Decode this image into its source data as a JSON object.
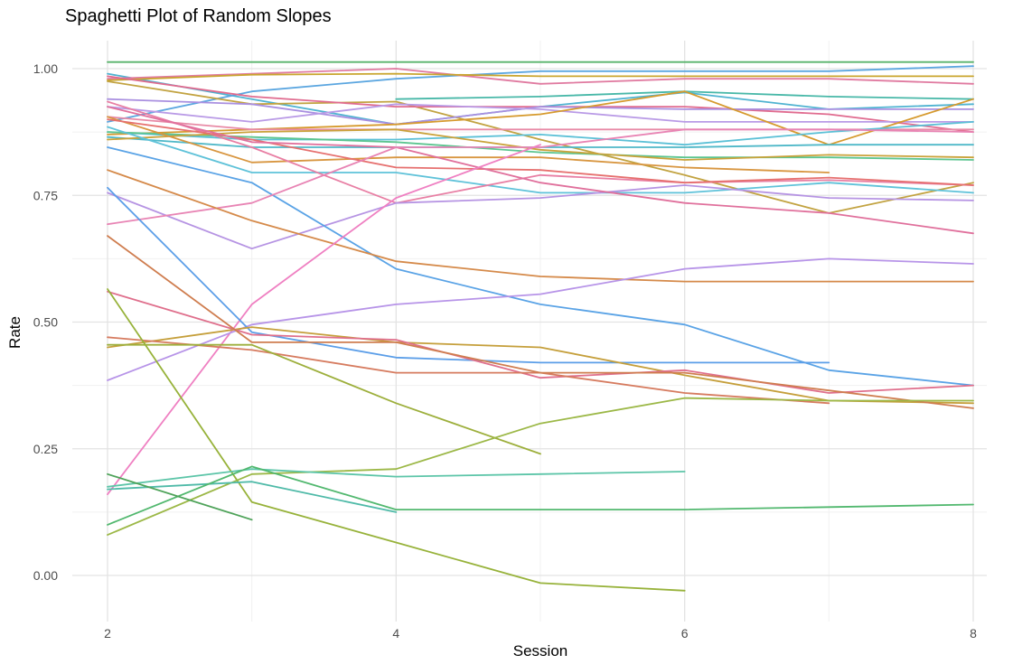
{
  "chart_data": {
    "type": "line",
    "title": "Spaghetti Plot of Random Slopes",
    "xlabel": "Session",
    "ylabel": "Rate",
    "xlim": [
      2,
      8
    ],
    "ylim": [
      -0.07,
      1.05
    ],
    "x_ticks": [
      2,
      4,
      6,
      8
    ],
    "y_ticks": [
      0.0,
      0.25,
      0.5,
      0.75,
      1.0
    ],
    "x_tick_labels": [
      "2",
      "4",
      "6",
      "8"
    ],
    "y_tick_labels": [
      "0.00",
      "0.25",
      "0.50",
      "0.75",
      "1.00"
    ],
    "grid": true,
    "legend": "none",
    "series": [
      {
        "color": "#59b36b",
        "points": [
          [
            2,
            1.013
          ],
          [
            4,
            1.013
          ],
          [
            6,
            1.013
          ],
          [
            8,
            1.013
          ]
        ]
      },
      {
        "color": "#4fb3d1",
        "points": [
          [
            2,
            0.99
          ],
          [
            3,
            0.94
          ],
          [
            4,
            0.89
          ],
          [
            5,
            0.925
          ],
          [
            6,
            0.953
          ],
          [
            7,
            0.92
          ],
          [
            8,
            0.93
          ]
        ]
      },
      {
        "color": "#5ba6e0",
        "points": [
          [
            2,
            0.895
          ],
          [
            3,
            0.955
          ],
          [
            4,
            0.98
          ],
          [
            5,
            0.995
          ],
          [
            6,
            0.995
          ],
          [
            7,
            0.995
          ],
          [
            8,
            1.005
          ]
        ]
      },
      {
        "color": "#e07aa0",
        "points": [
          [
            2,
            0.98
          ],
          [
            3,
            0.99
          ],
          [
            4,
            1.0
          ],
          [
            5,
            0.97
          ],
          [
            6,
            0.98
          ],
          [
            7,
            0.98
          ],
          [
            8,
            0.97
          ]
        ]
      },
      {
        "color": "#c9a52e",
        "points": [
          [
            2,
            0.977
          ],
          [
            3,
            0.988
          ],
          [
            4,
            0.99
          ],
          [
            5,
            0.985
          ],
          [
            6,
            0.985
          ],
          [
            7,
            0.985
          ],
          [
            8,
            0.985
          ]
        ]
      },
      {
        "color": "#c2a341",
        "points": [
          [
            2,
            0.975
          ],
          [
            3,
            0.93
          ],
          [
            4,
            0.935
          ],
          [
            5,
            0.86
          ],
          [
            6,
            0.79
          ],
          [
            7,
            0.715
          ],
          [
            8,
            0.775
          ]
        ]
      },
      {
        "color": "#e06b8f",
        "points": [
          [
            2,
            0.985
          ],
          [
            3,
            0.945
          ],
          [
            4,
            0.925
          ],
          [
            5,
            0.925
          ],
          [
            6,
            0.925
          ],
          [
            7,
            0.91
          ],
          [
            8,
            0.875
          ]
        ]
      },
      {
        "color": "#a98fe0",
        "points": [
          [
            2,
            0.94
          ],
          [
            3,
            0.93
          ],
          [
            4,
            0.89
          ],
          [
            5,
            0.925
          ],
          [
            6,
            0.92
          ],
          [
            7,
            0.92
          ],
          [
            8,
            0.92
          ]
        ]
      },
      {
        "color": "#48b8a8",
        "points": [
          [
            4,
            0.94
          ],
          [
            5,
            0.945
          ],
          [
            6,
            0.955
          ],
          [
            7,
            0.945
          ],
          [
            8,
            0.94
          ]
        ]
      },
      {
        "color": "#b99ae6",
        "points": [
          [
            2,
            0.925
          ],
          [
            3,
            0.895
          ],
          [
            4,
            0.93
          ],
          [
            5,
            0.92
          ],
          [
            6,
            0.895
          ],
          [
            7,
            0.895
          ],
          [
            8,
            0.895
          ]
        ]
      },
      {
        "color": "#d69a2e",
        "points": [
          [
            2,
            0.87
          ],
          [
            3,
            0.88
          ],
          [
            4,
            0.89
          ],
          [
            5,
            0.91
          ],
          [
            6,
            0.955
          ],
          [
            7,
            0.85
          ],
          [
            8,
            0.94
          ]
        ]
      },
      {
        "color": "#e88aa6",
        "points": [
          [
            2,
            0.905
          ],
          [
            3,
            0.88
          ],
          [
            4,
            0.88
          ],
          [
            5,
            0.88
          ],
          [
            6,
            0.88
          ],
          [
            7,
            0.88
          ],
          [
            8,
            0.88
          ]
        ]
      },
      {
        "color": "#5bc0d6",
        "points": [
          [
            2,
            0.875
          ],
          [
            3,
            0.86
          ],
          [
            4,
            0.86
          ],
          [
            5,
            0.87
          ],
          [
            6,
            0.85
          ],
          [
            7,
            0.875
          ],
          [
            8,
            0.895
          ]
        ]
      },
      {
        "color": "#4fb8c8",
        "points": [
          [
            2,
            0.865
          ],
          [
            3,
            0.845
          ],
          [
            4,
            0.845
          ],
          [
            5,
            0.845
          ],
          [
            6,
            0.845
          ],
          [
            7,
            0.85
          ],
          [
            8,
            0.85
          ]
        ]
      },
      {
        "color": "#5cc590",
        "points": [
          [
            2,
            0.875
          ],
          [
            3,
            0.865
          ],
          [
            4,
            0.855
          ],
          [
            5,
            0.835
          ],
          [
            6,
            0.825
          ],
          [
            7,
            0.825
          ],
          [
            8,
            0.82
          ]
        ]
      },
      {
        "color": "#caa23a",
        "points": [
          [
            2,
            0.86
          ],
          [
            3,
            0.875
          ],
          [
            4,
            0.88
          ],
          [
            5,
            0.84
          ],
          [
            6,
            0.82
          ],
          [
            7,
            0.83
          ],
          [
            8,
            0.825
          ]
        ]
      },
      {
        "color": "#d89640",
        "points": [
          [
            2,
            0.905
          ],
          [
            3,
            0.815
          ],
          [
            4,
            0.825
          ],
          [
            5,
            0.825
          ],
          [
            6,
            0.805
          ],
          [
            7,
            0.795
          ]
        ]
      },
      {
        "color": "#5fc2d9",
        "points": [
          [
            2,
            0.885
          ],
          [
            3,
            0.795
          ],
          [
            4,
            0.795
          ],
          [
            5,
            0.755
          ],
          [
            6,
            0.755
          ],
          [
            7,
            0.775
          ],
          [
            8,
            0.755
          ]
        ]
      },
      {
        "color": "#e87fa4",
        "points": [
          [
            2,
            0.935
          ],
          [
            3,
            0.845
          ],
          [
            4,
            0.735
          ],
          [
            5,
            0.79
          ],
          [
            6,
            0.775
          ],
          [
            7,
            0.78
          ],
          [
            8,
            0.77
          ]
        ]
      },
      {
        "color": "#e6706f",
        "points": [
          [
            2,
            0.9
          ],
          [
            3,
            0.86
          ],
          [
            4,
            0.805
          ],
          [
            5,
            0.8
          ],
          [
            6,
            0.775
          ],
          [
            7,
            0.785
          ],
          [
            8,
            0.77
          ]
        ]
      },
      {
        "color": "#b694e3",
        "points": [
          [
            2,
            0.755
          ],
          [
            3,
            0.645
          ],
          [
            4,
            0.735
          ],
          [
            5,
            0.745
          ],
          [
            6,
            0.77
          ],
          [
            7,
            0.745
          ],
          [
            8,
            0.74
          ]
        ]
      },
      {
        "color": "#e0709c",
        "points": [
          [
            2,
            0.925
          ],
          [
            3,
            0.855
          ],
          [
            4,
            0.845
          ],
          [
            5,
            0.775
          ],
          [
            6,
            0.735
          ],
          [
            7,
            0.715
          ],
          [
            8,
            0.675
          ]
        ]
      },
      {
        "color": "#5aa3e6",
        "points": [
          [
            2,
            0.845
          ],
          [
            3,
            0.775
          ],
          [
            4,
            0.605
          ],
          [
            5,
            0.535
          ],
          [
            6,
            0.495
          ],
          [
            7,
            0.405
          ],
          [
            8,
            0.375
          ]
        ]
      },
      {
        "color": "#e884b4",
        "points": [
          [
            2,
            0.693
          ],
          [
            3,
            0.735
          ],
          [
            4,
            0.845
          ],
          [
            5,
            0.845
          ],
          [
            6,
            0.88
          ],
          [
            7,
            0.88
          ],
          [
            8,
            0.875
          ]
        ]
      },
      {
        "color": "#d58a4a",
        "points": [
          [
            2,
            0.8
          ],
          [
            3,
            0.7
          ],
          [
            4,
            0.62
          ],
          [
            5,
            0.59
          ],
          [
            6,
            0.58
          ],
          [
            7,
            0.58
          ],
          [
            8,
            0.58
          ]
        ]
      },
      {
        "color": "#ef80c2",
        "points": [
          [
            2,
            0.16
          ],
          [
            3,
            0.535
          ],
          [
            4,
            0.745
          ],
          [
            5,
            0.85
          ]
        ]
      },
      {
        "color": "#b794e8",
        "points": [
          [
            2,
            0.385
          ],
          [
            3,
            0.495
          ],
          [
            4,
            0.535
          ],
          [
            5,
            0.555
          ],
          [
            6,
            0.605
          ],
          [
            7,
            0.625
          ],
          [
            8,
            0.615
          ]
        ]
      },
      {
        "color": "#5b9ee8",
        "points": [
          [
            2,
            0.765
          ],
          [
            3,
            0.48
          ],
          [
            4,
            0.43
          ],
          [
            5,
            0.42
          ],
          [
            6,
            0.42
          ],
          [
            7,
            0.42
          ]
        ]
      },
      {
        "color": "#c59f3b",
        "points": [
          [
            2,
            0.45
          ],
          [
            3,
            0.49
          ],
          [
            4,
            0.46
          ],
          [
            5,
            0.45
          ],
          [
            6,
            0.395
          ],
          [
            7,
            0.345
          ],
          [
            8,
            0.34
          ]
        ]
      },
      {
        "color": "#df6f8c",
        "points": [
          [
            2,
            0.56
          ],
          [
            3,
            0.475
          ],
          [
            4,
            0.465
          ],
          [
            5,
            0.39
          ],
          [
            6,
            0.405
          ],
          [
            7,
            0.36
          ],
          [
            8,
            0.375
          ]
        ]
      },
      {
        "color": "#d67b5f",
        "points": [
          [
            2,
            0.47
          ],
          [
            3,
            0.445
          ],
          [
            4,
            0.4
          ],
          [
            5,
            0.4
          ],
          [
            6,
            0.36
          ],
          [
            7,
            0.34
          ]
        ]
      },
      {
        "color": "#cf7d4f",
        "points": [
          [
            2,
            0.67
          ],
          [
            3,
            0.46
          ],
          [
            4,
            0.46
          ],
          [
            5,
            0.4
          ],
          [
            6,
            0.4
          ],
          [
            7,
            0.365
          ],
          [
            8,
            0.33
          ]
        ]
      },
      {
        "color": "#9daf3c",
        "points": [
          [
            2,
            0.455
          ],
          [
            3,
            0.455
          ],
          [
            4,
            0.34
          ],
          [
            5,
            0.24
          ]
        ]
      },
      {
        "color": "#97b23a",
        "points": [
          [
            2,
            0.565
          ],
          [
            3,
            0.145
          ],
          [
            4,
            0.065
          ],
          [
            5,
            -0.015
          ],
          [
            6,
            -0.03
          ]
        ]
      },
      {
        "color": "#9cb847",
        "points": [
          [
            2,
            0.08
          ],
          [
            3,
            0.2
          ],
          [
            4,
            0.21
          ],
          [
            5,
            0.3
          ],
          [
            6,
            0.35
          ],
          [
            7,
            0.345
          ],
          [
            8,
            0.345
          ]
        ]
      },
      {
        "color": "#5cc5a8",
        "points": [
          [
            2,
            0.175
          ],
          [
            3,
            0.21
          ],
          [
            4,
            0.195
          ],
          [
            5,
            0.2
          ],
          [
            6,
            0.205
          ]
        ]
      },
      {
        "color": "#4fbaa8",
        "points": [
          [
            2,
            0.17
          ],
          [
            3,
            0.185
          ],
          [
            4,
            0.125
          ]
        ]
      },
      {
        "color": "#52b86f",
        "points": [
          [
            2,
            0.1
          ],
          [
            3,
            0.215
          ],
          [
            4,
            0.13
          ],
          [
            5,
            0.13
          ],
          [
            6,
            0.13
          ],
          [
            7,
            0.135
          ],
          [
            8,
            0.14
          ]
        ]
      },
      {
        "color": "#4fa35a",
        "points": [
          [
            2,
            0.2
          ],
          [
            3,
            0.11
          ]
        ]
      }
    ]
  }
}
